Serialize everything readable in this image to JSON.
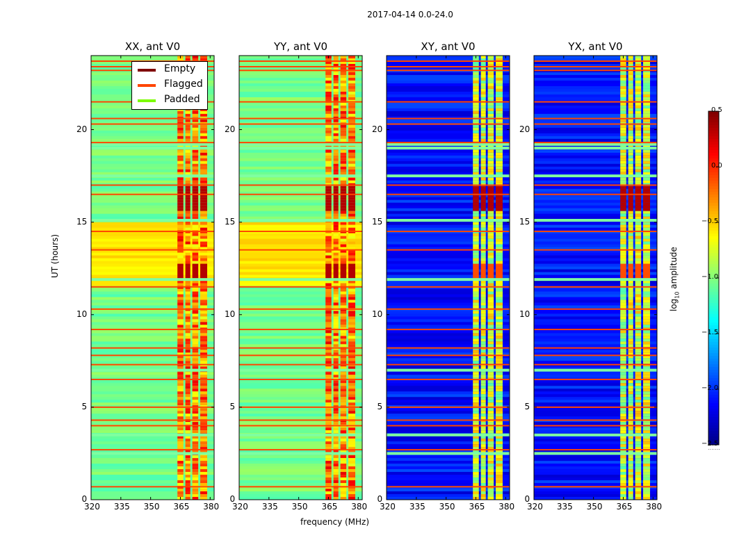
{
  "chart_data": {
    "type": "heatmap",
    "suptitle": "2017-04-14 0.0-24.0",
    "xlabel": "frequency (MHz)",
    "ylabel": "UT (hours)",
    "xlim": [
      320,
      382
    ],
    "ylim": [
      0,
      24
    ],
    "xticks": [
      320,
      335,
      350,
      365,
      380
    ],
    "yticks": [
      0,
      5,
      10,
      15,
      20
    ],
    "panels": [
      {
        "title": "XX, ant V0",
        "kind": "auto"
      },
      {
        "title": "YY, ant V0",
        "kind": "auto"
      },
      {
        "title": "XY, ant V0",
        "kind": "cross"
      },
      {
        "title": "YX, ant V0",
        "kind": "cross"
      }
    ],
    "colorbar": {
      "label": "log10 amplitude",
      "label_main": "log",
      "label_sub": "10",
      "label_tail": " amplitude",
      "ticks": [
        "0.5",
        "0.0",
        "−0.5",
        "−1.0",
        "−1.5",
        "−2.0",
        "−2.5"
      ],
      "range": [
        -2.5,
        0.5
      ]
    },
    "legend": [
      {
        "label": "Empty",
        "color": "#7f0000"
      },
      {
        "label": "Flagged",
        "color": "#ff4500"
      },
      {
        "label": "Padded",
        "color": "#7cfc00"
      }
    ],
    "flagged_ut_hours": [
      0.7,
      2.7,
      4.0,
      4.3,
      5.0,
      6.5,
      7.3,
      7.8,
      8.2,
      9.2,
      10.3,
      11.5,
      13.5,
      14.5,
      16.5,
      17.0,
      19.3,
      20.3,
      20.6,
      21.5,
      23.2,
      23.4,
      23.7
    ],
    "padded_ut_hours": [
      2.5,
      3.5,
      7.0,
      11.9,
      15.1,
      19.0,
      19.2,
      17.5
    ],
    "bright_bands_mhz": [
      [
        363.5,
        366.5
      ],
      [
        367.5,
        370
      ],
      [
        371,
        374
      ],
      [
        375,
        378.5
      ]
    ]
  }
}
